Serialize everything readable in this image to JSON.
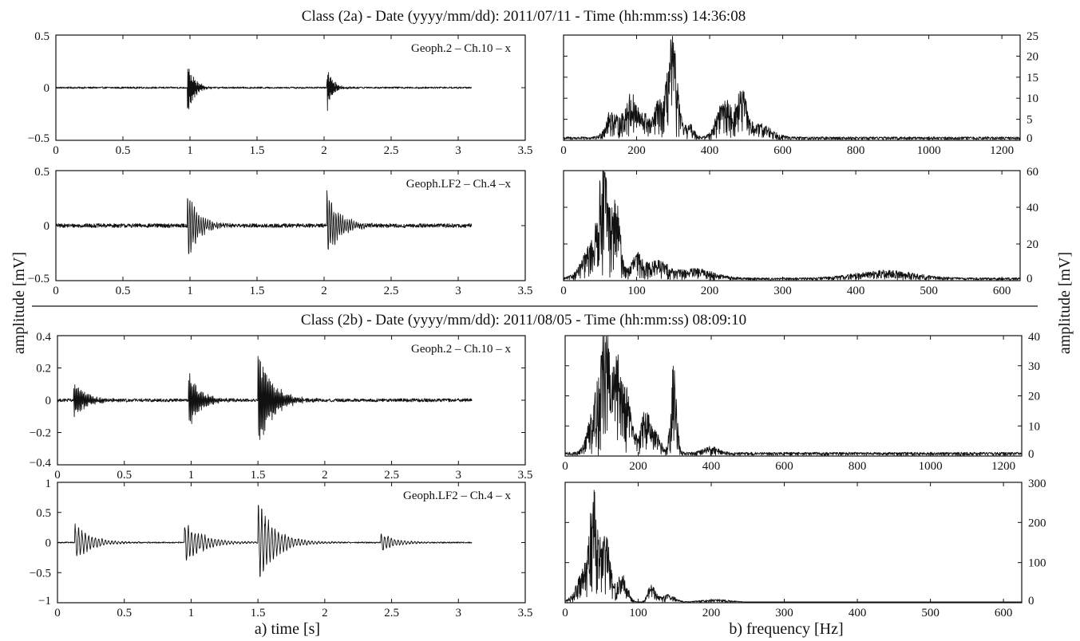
{
  "figure": {
    "title_top": "Class (2a) - Date (yyyy/mm/dd): 2011/07/11 - Time (hh:mm:ss) 14:36:08",
    "title_bottom": "Class (2b) - Date (yyyy/mm/dd): 2011/08/05 - Time (hh:mm:ss) 08:09:10",
    "ylabel_left": "amplitude [mV]",
    "ylabel_right": "amplitude [mV]",
    "xlabel_left": "a) time [s]",
    "xlabel_right": "b) frequency [Hz]"
  },
  "chart_data": [
    {
      "id": "p1",
      "type": "line",
      "domain": "time",
      "annotation": "Geoph.2 – Ch.10 – x",
      "xlim": [
        0,
        3.5
      ],
      "ylim": [
        -0.5,
        0.5
      ],
      "yaxis": "left",
      "xticks": [
        "0",
        "0.5",
        "1",
        "1.5",
        "2",
        "2.5",
        "3",
        "3.5"
      ],
      "yticks": [
        "0.5",
        "0",
        "−0.5"
      ],
      "duration": 3.1,
      "noise": 0.008,
      "events": [
        {
          "t": 0.98,
          "amp": 0.34,
          "decay": 0.045,
          "freq": 300
        },
        {
          "t": 2.02,
          "amp": 0.26,
          "decay": 0.04,
          "freq": 300
        }
      ]
    },
    {
      "id": "p2",
      "type": "line",
      "domain": "time",
      "annotation": "Geoph.LF2 – Ch.4 –x",
      "xlim": [
        0,
        3.5
      ],
      "ylim": [
        -0.5,
        0.5
      ],
      "yaxis": "left",
      "xticks": [
        "0",
        "0.5",
        "1",
        "1.5",
        "2",
        "2.5",
        "3",
        "3.5"
      ],
      "yticks": [
        "0.5",
        "0",
        "−0.5"
      ],
      "duration": 3.1,
      "noise": 0.018,
      "events": [
        {
          "t": 0.98,
          "amp": 0.37,
          "decay": 0.08,
          "freq": 60
        },
        {
          "t": 2.02,
          "amp": 0.35,
          "decay": 0.09,
          "freq": 60
        }
      ]
    },
    {
      "id": "p3",
      "type": "line",
      "domain": "freq",
      "annotation": "",
      "xlim": [
        0,
        1250
      ],
      "ylim": [
        0,
        25
      ],
      "yaxis": "right",
      "xticks": [
        "0",
        "200",
        "400",
        "600",
        "800",
        "1000",
        "1200"
      ],
      "yticks": [
        "25",
        "20",
        "15",
        "10",
        "5",
        "0"
      ],
      "floor": 0.8,
      "peaks": [
        {
          "f": 130,
          "a": 6,
          "w": 15
        },
        {
          "f": 185,
          "a": 10,
          "w": 20
        },
        {
          "f": 225,
          "a": 4,
          "w": 10
        },
        {
          "f": 258,
          "a": 8,
          "w": 12
        },
        {
          "f": 297,
          "a": 23,
          "w": 14
        },
        {
          "f": 345,
          "a": 3,
          "w": 12
        },
        {
          "f": 440,
          "a": 9,
          "w": 20
        },
        {
          "f": 488,
          "a": 10,
          "w": 14
        },
        {
          "f": 540,
          "a": 3,
          "w": 30
        }
      ]
    },
    {
      "id": "p4",
      "type": "line",
      "domain": "freq",
      "annotation": "",
      "xlim": [
        0,
        625
      ],
      "ylim": [
        0,
        60
      ],
      "yaxis": "right",
      "xticks": [
        "0",
        "100",
        "200",
        "300",
        "400",
        "500",
        "600"
      ],
      "yticks": [
        "60",
        "40",
        "20",
        "0"
      ],
      "floor": 1.5,
      "peaks": [
        {
          "f": 42,
          "a": 20,
          "w": 14
        },
        {
          "f": 55,
          "a": 50,
          "w": 6
        },
        {
          "f": 72,
          "a": 38,
          "w": 6
        },
        {
          "f": 100,
          "a": 12,
          "w": 8
        },
        {
          "f": 128,
          "a": 9,
          "w": 14
        },
        {
          "f": 180,
          "a": 5,
          "w": 25
        },
        {
          "f": 440,
          "a": 4,
          "w": 40
        }
      ]
    },
    {
      "id": "p5",
      "type": "line",
      "domain": "time",
      "annotation": "Geoph.2 – Ch.10 – x",
      "xlim": [
        0,
        3.5
      ],
      "ylim": [
        -0.4,
        0.4
      ],
      "yaxis": "left",
      "xticks": [
        "0",
        "0.5",
        "1",
        "1.5",
        "2",
        "2.5",
        "3",
        "3.5"
      ],
      "yticks": [
        "0.4",
        "0.2",
        "0",
        "−0.2",
        "−0.4"
      ],
      "duration": 3.1,
      "noise": 0.01,
      "events": [
        {
          "t": 0.12,
          "amp": 0.13,
          "decay": 0.09,
          "freq": 110
        },
        {
          "t": 0.98,
          "amp": 0.21,
          "decay": 0.08,
          "freq": 110
        },
        {
          "t": 1.5,
          "amp": 0.36,
          "decay": 0.1,
          "freq": 110
        }
      ]
    },
    {
      "id": "p6",
      "type": "line",
      "domain": "time",
      "annotation": "Geoph.LF2 – Ch.4 – x",
      "xlim": [
        0,
        3.5
      ],
      "ylim": [
        -1,
        1
      ],
      "yaxis": "left",
      "xticks": [
        "0",
        "0.5",
        "1",
        "1.5",
        "2",
        "2.5",
        "3",
        "3.5"
      ],
      "yticks": [
        "1",
        "0.5",
        "0",
        "−0.5",
        "−1"
      ],
      "duration": 3.1,
      "noise": 0.01,
      "events": [
        {
          "t": 0.13,
          "amp": 0.35,
          "decay": 0.12,
          "freq": 40
        },
        {
          "t": 0.95,
          "amp": 0.38,
          "decay": 0.14,
          "freq": 40
        },
        {
          "t": 1.5,
          "amp": 0.72,
          "decay": 0.13,
          "freq": 40
        },
        {
          "t": 2.42,
          "amp": 0.2,
          "decay": 0.1,
          "freq": 40
        }
      ]
    },
    {
      "id": "p7",
      "type": "line",
      "domain": "freq",
      "annotation": "",
      "xlim": [
        0,
        1250
      ],
      "ylim": [
        0,
        40
      ],
      "yaxis": "right",
      "xticks": [
        "0",
        "200",
        "400",
        "600",
        "800",
        "1000",
        "1200"
      ],
      "yticks": [
        "40",
        "30",
        "20",
        "10",
        "0"
      ],
      "floor": 1.2,
      "peaks": [
        {
          "f": 85,
          "a": 20,
          "w": 18
        },
        {
          "f": 110,
          "a": 32,
          "w": 10
        },
        {
          "f": 140,
          "a": 28,
          "w": 15
        },
        {
          "f": 170,
          "a": 18,
          "w": 15
        },
        {
          "f": 220,
          "a": 14,
          "w": 12
        },
        {
          "f": 250,
          "a": 6,
          "w": 12
        },
        {
          "f": 297,
          "a": 28,
          "w": 8
        },
        {
          "f": 400,
          "a": 2,
          "w": 20
        }
      ]
    },
    {
      "id": "p8",
      "type": "line",
      "domain": "freq",
      "annotation": "",
      "xlim": [
        0,
        625
      ],
      "ylim": [
        0,
        300
      ],
      "yaxis": "right",
      "xticks": [
        "0",
        "100",
        "200",
        "300",
        "400",
        "500",
        "600"
      ],
      "yticks": [
        "300",
        "200",
        "100",
        "0"
      ],
      "floor": 1.5,
      "peaks": [
        {
          "f": 30,
          "a": 90,
          "w": 12
        },
        {
          "f": 40,
          "a": 230,
          "w": 5
        },
        {
          "f": 56,
          "a": 150,
          "w": 6
        },
        {
          "f": 78,
          "a": 70,
          "w": 7
        },
        {
          "f": 118,
          "a": 45,
          "w": 5
        },
        {
          "f": 140,
          "a": 20,
          "w": 10
        },
        {
          "f": 205,
          "a": 7,
          "w": 20
        }
      ]
    }
  ]
}
